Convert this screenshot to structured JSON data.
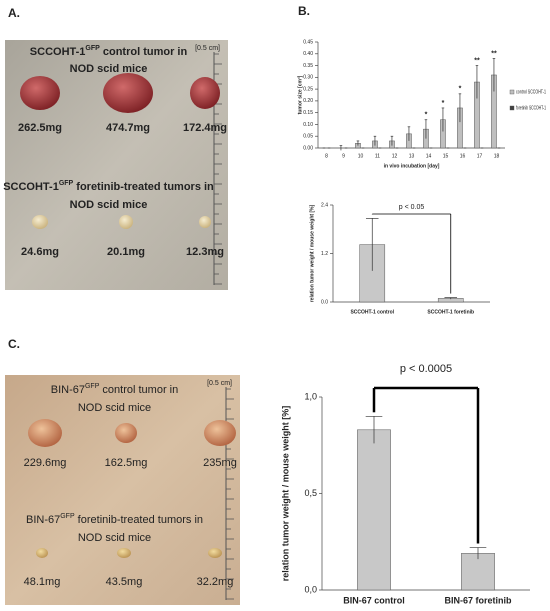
{
  "panel_b": "B.",
  "photos": [
    {
      "label": "A.",
      "scale": "[0.5 cm]",
      "groups": [
        {
          "line1": [
            "SCCOHT-1",
            "GFP",
            " control tumor in"
          ],
          "line2": "NOD scid mice",
          "weights": [
            "262.5mg",
            "474.7mg",
            "172.4mg"
          ]
        },
        {
          "line1": [
            "SCCOHT-1",
            "GFP",
            " foretinib-treated tumors in"
          ],
          "line2": "NOD scid mice",
          "weights": [
            "24.6mg",
            "20.1mg",
            "12.3mg"
          ]
        }
      ]
    },
    {
      "label": "C.",
      "scale": "[0.5 cm]",
      "groups": [
        {
          "line1": [
            "BIN-67",
            "GFP",
            " control tumor in"
          ],
          "line2": "NOD scid mice",
          "weights": [
            "229.6mg",
            "162.5mg",
            "235mg"
          ]
        },
        {
          "line1": [
            "BIN-67",
            "GFP",
            " foretinib-treated tumors in"
          ],
          "line2": "NOD scid mice",
          "weights": [
            "48.1mg",
            "43.5mg",
            "32.2mg"
          ]
        }
      ]
    }
  ],
  "chart_data": [
    {
      "type": "bar",
      "y_label": "tumor size [cm³]",
      "x_label": "in vivo incubation [day]",
      "categories": [
        "8",
        "9",
        "10",
        "11",
        "12",
        "13",
        "14",
        "15",
        "16",
        "17",
        "18"
      ],
      "series": [
        {
          "name": "control SCCOHT-1",
          "color": "#bfbfbf",
          "values": [
            0.0,
            0.0,
            0.02,
            0.03,
            0.03,
            0.06,
            0.08,
            0.12,
            0.17,
            0.28,
            0.31
          ],
          "errors": [
            0.0,
            0.01,
            0.01,
            0.02,
            0.02,
            0.03,
            0.04,
            0.05,
            0.06,
            0.07,
            0.07
          ]
        },
        {
          "name": "foretinib SCCOHT-1",
          "color": "#404040",
          "values": [
            0,
            0,
            0,
            0,
            0,
            0,
            0,
            0,
            0,
            0,
            0
          ],
          "errors": [
            0,
            0,
            0,
            0,
            0,
            0,
            0,
            0,
            0,
            0,
            0
          ]
        }
      ],
      "significance": [
        null,
        null,
        null,
        null,
        null,
        null,
        "*",
        "*",
        "*",
        "**",
        "**"
      ],
      "ylim": [
        0,
        0.45
      ],
      "yticks": [
        {
          "value": 0,
          "label": "0.00"
        },
        0.05,
        {
          "value": 0.1,
          "label": "0.10"
        },
        0.15,
        {
          "value": 0.2,
          "label": "0.20"
        },
        0.25,
        {
          "value": 0.3,
          "label": "0.30"
        },
        0.35,
        {
          "value": 0.4,
          "label": "0.40"
        },
        0.45
      ],
      "legend": "right"
    },
    {
      "type": "bar",
      "y_label": "relation tumor weight / mouse weight [%]",
      "annotation": "p < 0.05",
      "categories": [
        "SCCOHT-1 control",
        "SCCOHT-1 foretinib"
      ],
      "values": [
        1.42,
        0.09
      ],
      "errors": [
        0.65,
        0.02
      ],
      "color": "#c8c8c8",
      "ylim": [
        0,
        2.4
      ],
      "yticks": [
        {
          "value": 0,
          "label": "0.0"
        },
        1.2,
        2.4
      ]
    },
    {
      "type": "bar",
      "y_label": "relation tumor weight / mouse weight [%]",
      "annotation": "p < 0.0005",
      "categories": [
        "BIN-67 control",
        "BIN-67 foretinib"
      ],
      "values": [
        0.83,
        0.19
      ],
      "errors": [
        0.07,
        0.03
      ],
      "color": "#c8c8c8",
      "ylim": [
        0,
        1.0
      ],
      "yticks": [
        {
          "value": 0,
          "label": "0,0"
        },
        {
          "value": 0.5,
          "label": "0,5"
        },
        {
          "value": 1.0,
          "label": "1,0"
        }
      ]
    }
  ]
}
